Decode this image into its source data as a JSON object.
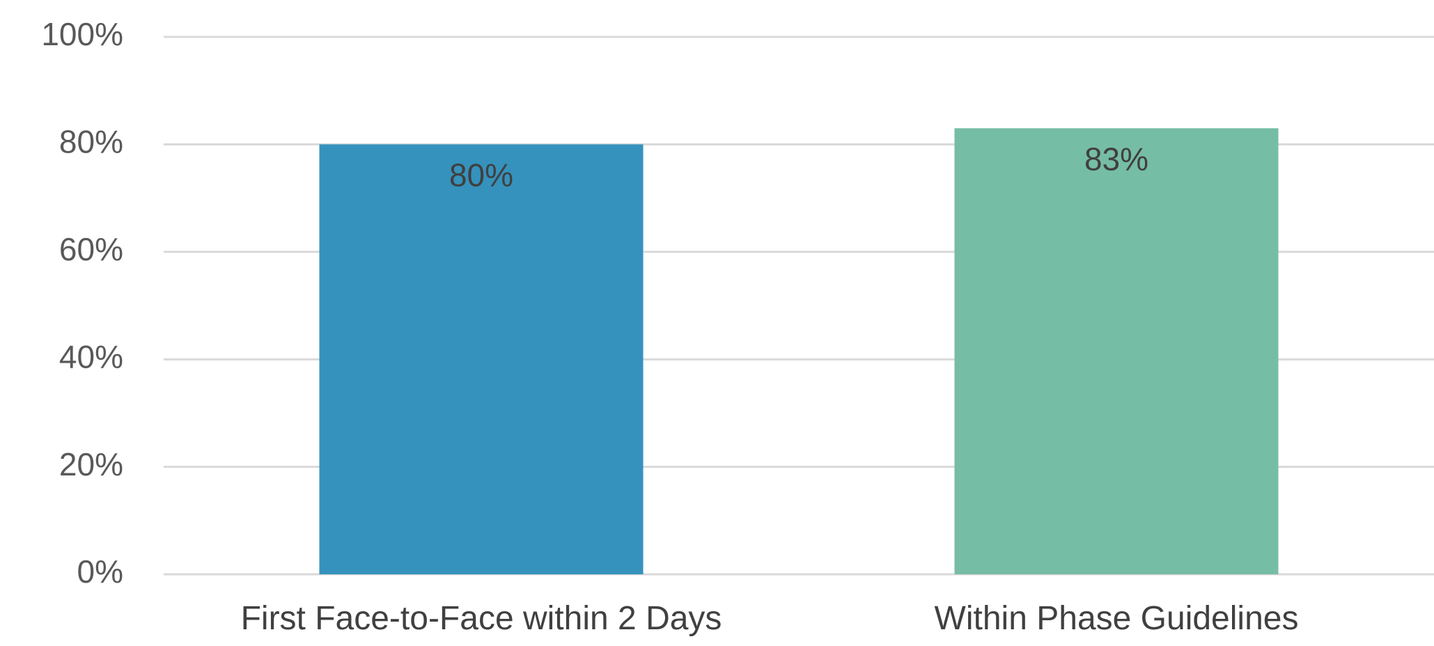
{
  "chart_data": {
    "type": "bar",
    "title": "",
    "xlabel": "",
    "ylabel": "",
    "categories": [
      "First Face-to-Face within 2 Days",
      "Within Phase Guidelines"
    ],
    "values": [
      80,
      83
    ],
    "data_labels": [
      "80%",
      "83%"
    ],
    "colors": [
      "#3592bd",
      "#76bda5"
    ],
    "ylim": [
      0,
      100
    ],
    "yticks": [
      0,
      20,
      40,
      60,
      80,
      100
    ],
    "ytick_labels": [
      "0%",
      "20%",
      "40%",
      "60%",
      "80%",
      "100%"
    ],
    "grid": true,
    "legend": "none"
  }
}
